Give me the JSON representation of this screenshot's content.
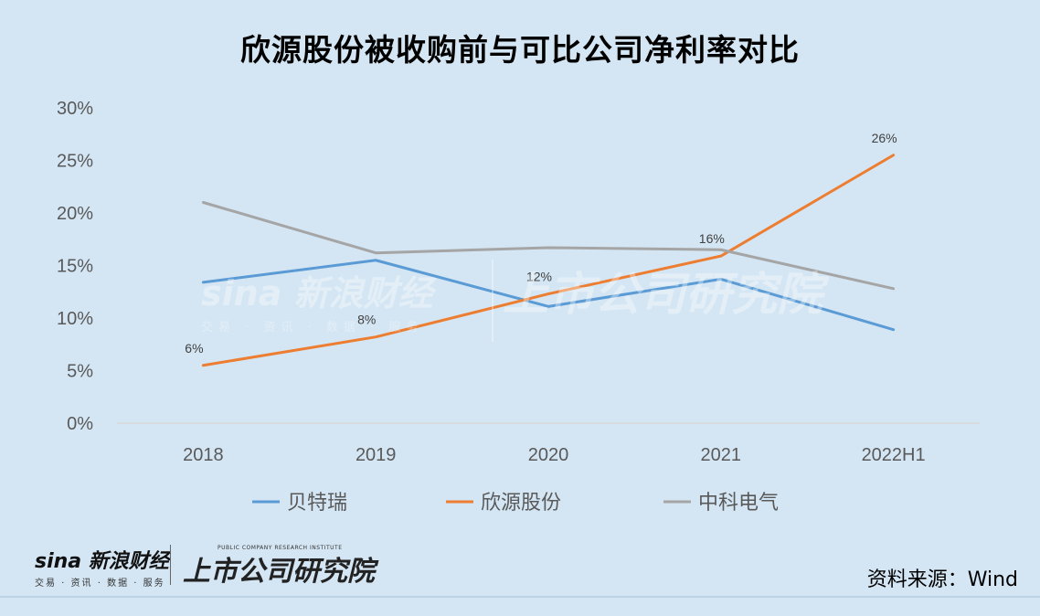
{
  "title": "欣源股份被收购前与可比公司净利率对比",
  "source": "资料来源：Wind",
  "watermark": {
    "sina": "sina 新浪财经",
    "sina_sub": "交易 · 资讯 · 数据 · 服务",
    "institute": "上市公司研究院",
    "institute_en": "PUBLIC COMPANY RESEARCH INSTITUTE"
  },
  "chart_data": {
    "type": "line",
    "title": "欣源股份被收购前与可比公司净利率对比",
    "categories": [
      "2018",
      "2019",
      "2020",
      "2021",
      "2022H1"
    ],
    "y_ticks": [
      "0%",
      "5%",
      "10%",
      "15%",
      "20%",
      "25%",
      "30%"
    ],
    "ylim": [
      0,
      30
    ],
    "grid": false,
    "legend_position": "bottom",
    "series": [
      {
        "name": "贝特瑞",
        "color": "#5b9bd5",
        "values": [
          13.4,
          15.5,
          11.1,
          13.7,
          8.9
        ],
        "labels": []
      },
      {
        "name": "欣源股份",
        "color": "#ed7d31",
        "values": [
          5.5,
          8.2,
          12.3,
          15.9,
          25.5
        ],
        "labels": [
          "6%",
          "8%",
          "12%",
          "16%",
          "26%"
        ]
      },
      {
        "name": "中科电气",
        "color": "#a5a5a5",
        "values": [
          21.0,
          16.2,
          16.7,
          16.5,
          12.8
        ],
        "labels": []
      }
    ]
  }
}
